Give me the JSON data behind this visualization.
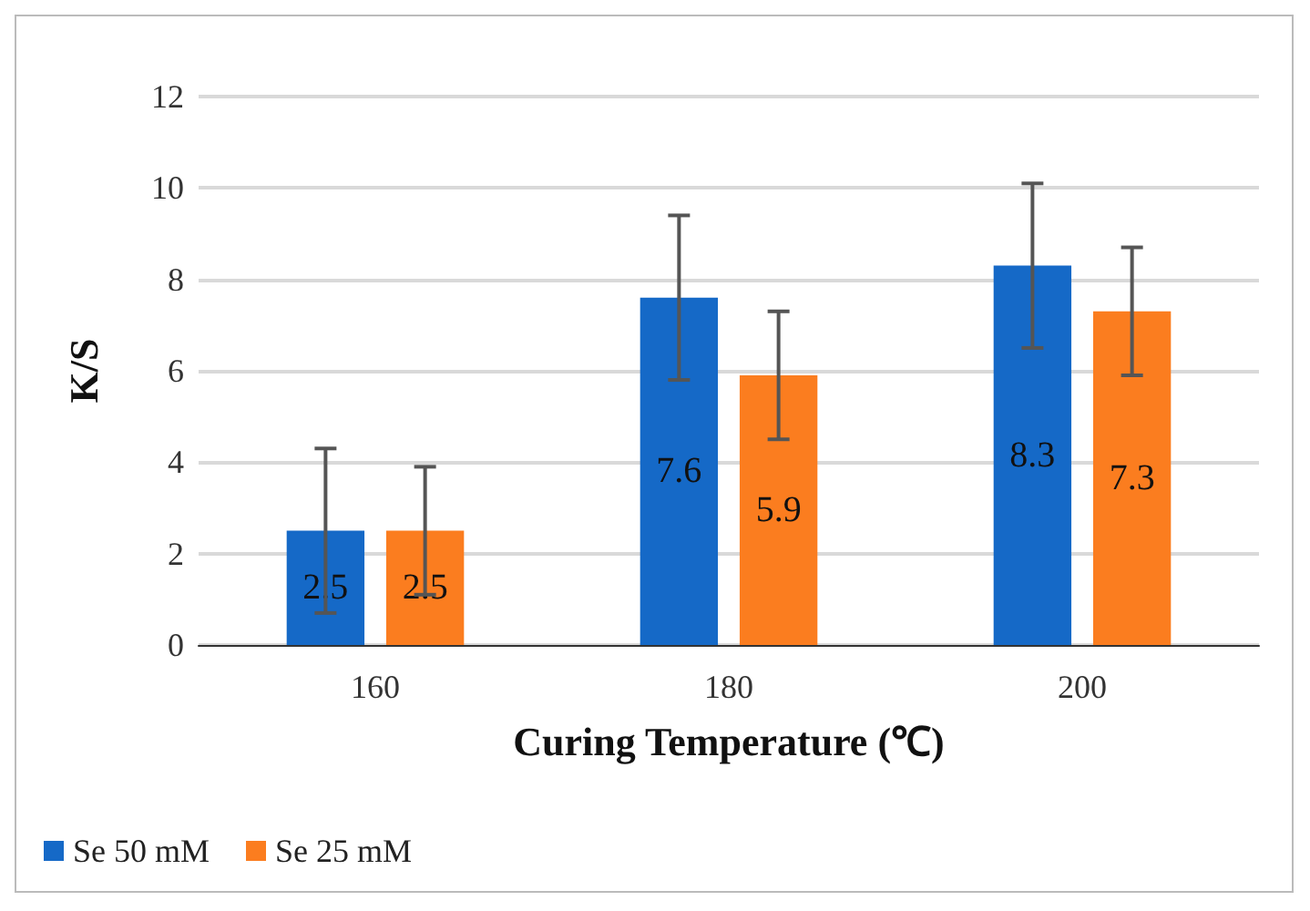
{
  "chart_data": {
    "type": "bar",
    "xlabel": "Curing Temperature (℃)",
    "ylabel": "K/S",
    "categories": [
      "160",
      "180",
      "200"
    ],
    "series": [
      {
        "name": "Se 50 mM",
        "color": "#1569c7",
        "values": [
          2.5,
          7.6,
          8.3
        ],
        "errors": [
          1.8,
          1.8,
          1.8
        ]
      },
      {
        "name": "Se 25 mM",
        "color": "#fb7d1f",
        "values": [
          2.5,
          5.9,
          7.3
        ],
        "errors": [
          1.4,
          1.4,
          1.4
        ]
      }
    ],
    "ylim": [
      0,
      12
    ],
    "yticks": [
      0,
      2,
      4,
      6,
      8,
      10,
      12
    ],
    "grid": "y",
    "legend": "bottom left",
    "data_labels": true
  }
}
